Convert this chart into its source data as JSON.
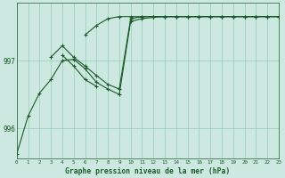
{
  "bg_color": "#cce8e0",
  "plot_bg_color": "#cce8e0",
  "grid_color": "#99ccbb",
  "line_color": "#1a5c2a",
  "marker_color": "#1a5c2a",
  "xlabel": "Graphe pression niveau de la mer (hPa)",
  "ylabel_ticks": [
    996,
    997
  ],
  "xlim": [
    0,
    23
  ],
  "ylim": [
    995.55,
    997.85
  ],
  "series": [
    [
      995.62,
      996.18,
      996.52,
      996.72,
      997.0,
      997.02,
      996.88,
      996.68,
      996.58,
      996.5,
      997.58,
      997.62,
      997.64,
      997.65,
      997.65,
      997.65,
      997.65,
      997.65,
      997.65,
      997.65,
      997.65,
      997.65,
      997.65,
      997.65
    ],
    [
      null,
      null,
      null,
      997.05,
      997.22,
      997.05,
      996.92,
      996.78,
      996.65,
      996.58,
      997.62,
      997.65,
      997.65,
      997.65,
      997.65,
      997.65,
      997.65,
      997.65,
      997.65,
      997.65,
      997.65,
      997.65,
      997.65,
      997.65
    ],
    [
      null,
      null,
      null,
      null,
      997.08,
      996.92,
      996.72,
      996.62,
      null,
      null,
      null,
      null,
      null,
      null,
      null,
      null,
      null,
      null,
      null,
      null,
      null,
      null,
      null,
      null
    ],
    [
      null,
      null,
      null,
      null,
      null,
      null,
      997.38,
      997.52,
      997.62,
      997.65,
      997.65,
      997.65,
      997.65,
      997.65,
      997.65,
      997.65,
      997.65,
      997.65,
      997.65,
      997.65,
      997.65,
      997.65,
      997.65,
      997.65
    ]
  ]
}
